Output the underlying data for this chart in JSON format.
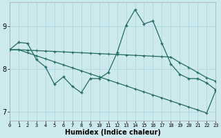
{
  "xlabel": "Humidex (Indice chaleur)",
  "xlim": [
    0,
    23
  ],
  "ylim": [
    6.8,
    9.55
  ],
  "yticks": [
    7,
    8,
    9
  ],
  "xticks": [
    0,
    1,
    2,
    3,
    4,
    5,
    6,
    7,
    8,
    9,
    10,
    11,
    12,
    13,
    14,
    15,
    16,
    17,
    18,
    19,
    20,
    21,
    22,
    23
  ],
  "bg_color": "#cce9ed",
  "line_color": "#216b61",
  "grid_color": "#b0d8de",
  "line1_y": [
    8.45,
    8.62,
    8.6,
    8.22,
    8.05,
    7.65,
    7.82,
    7.6,
    7.45,
    7.78,
    7.78,
    7.92,
    8.38,
    9.02,
    9.38,
    9.05,
    9.12,
    8.6,
    8.12,
    7.88,
    7.78,
    7.78,
    7.68,
    7.52
  ],
  "line2_y": [
    8.45,
    8.45,
    8.44,
    8.43,
    8.42,
    8.41,
    8.4,
    8.39,
    8.38,
    8.37,
    8.36,
    8.35,
    8.34,
    8.33,
    8.32,
    8.31,
    8.3,
    8.29,
    8.28,
    8.15,
    8.04,
    7.92,
    7.8,
    7.72
  ],
  "line3_y": [
    8.45,
    8.45,
    8.38,
    8.31,
    8.24,
    8.17,
    8.1,
    8.03,
    7.96,
    7.89,
    7.82,
    7.75,
    7.68,
    7.61,
    7.54,
    7.47,
    7.4,
    7.33,
    7.26,
    7.19,
    7.12,
    7.05,
    6.98,
    7.5
  ]
}
